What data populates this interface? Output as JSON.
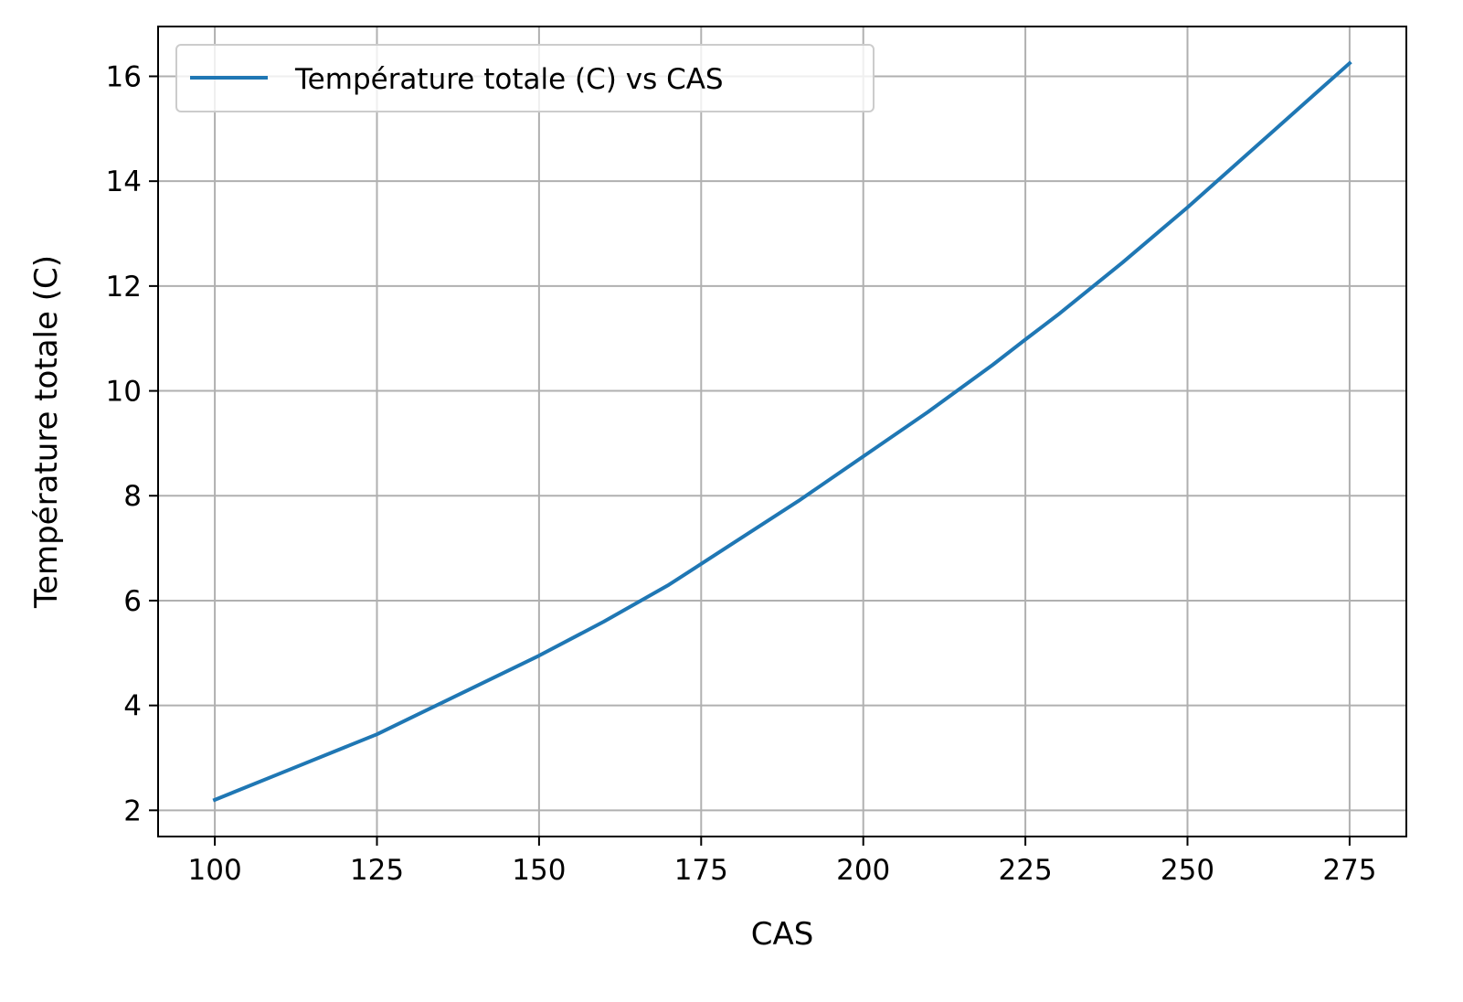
{
  "colors": {
    "series": "#1f77b4",
    "grid": "#b0b0b0",
    "axes": "#000000",
    "legend_border": "#cccccc",
    "background": "#ffffff"
  },
  "chart_data": {
    "type": "line",
    "title": "",
    "xlabel": "CAS",
    "ylabel": "Température totale (C)",
    "xlim": [
      91.25,
      283.75
    ],
    "ylim": [
      1.5,
      16.95
    ],
    "xticks": [
      100,
      125,
      150,
      175,
      200,
      225,
      250,
      275
    ],
    "yticks": [
      2,
      4,
      6,
      8,
      10,
      12,
      14,
      16
    ],
    "grid": true,
    "legend_position": "upper-left",
    "series": [
      {
        "name": "Température totale (C) vs CAS",
        "color": "#1f77b4",
        "x": [
          100,
          110,
          120,
          125,
          130,
          140,
          150,
          160,
          170,
          175,
          180,
          190,
          200,
          210,
          220,
          225,
          230,
          240,
          250,
          260,
          270,
          275
        ],
        "y": [
          2.2,
          2.7,
          3.2,
          3.45,
          3.75,
          4.35,
          4.95,
          5.6,
          6.3,
          6.7,
          7.1,
          7.9,
          8.75,
          9.6,
          10.5,
          10.98,
          11.45,
          12.45,
          13.5,
          14.6,
          15.7,
          16.25
        ]
      }
    ]
  }
}
